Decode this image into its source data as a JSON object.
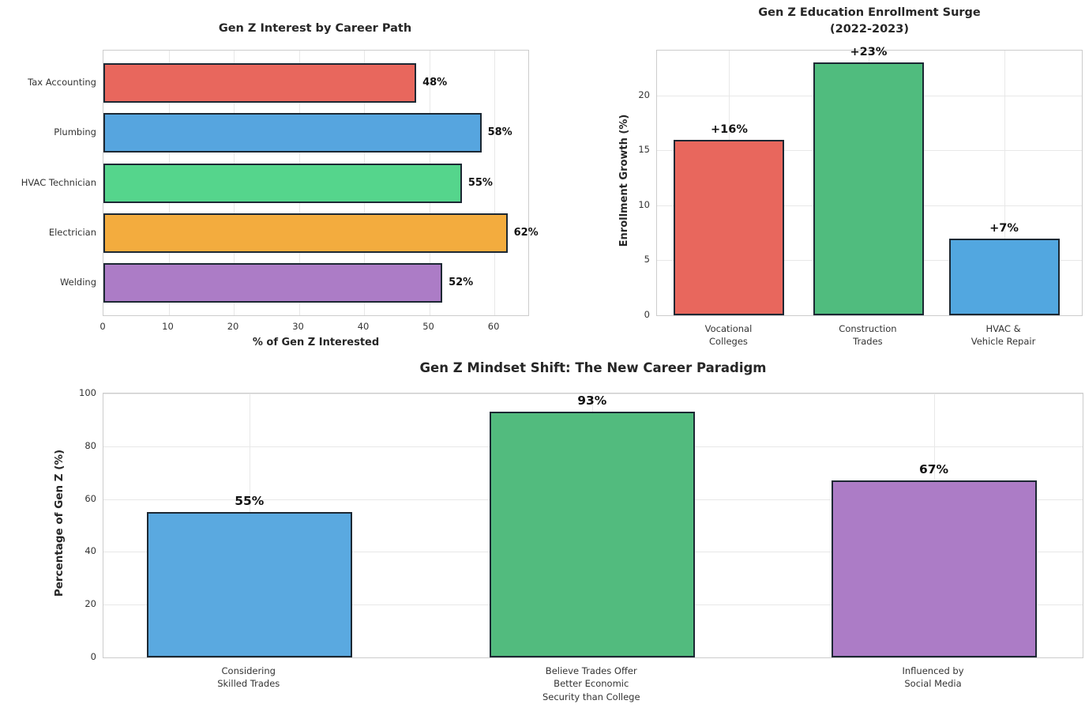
{
  "figure": {
    "background": "#ffffff",
    "bar_edge_color": "#1c2833"
  },
  "chart_data": [
    {
      "id": "career-interest",
      "type": "bar",
      "orientation": "horizontal",
      "title": "Gen Z Interest by Career Path",
      "xlabel": "% of Gen Z Interested",
      "categories": [
        "Tax Accounting",
        "Plumbing",
        "HVAC Technician",
        "Electrician",
        "Welding"
      ],
      "values": [
        48,
        58,
        55,
        62,
        52
      ],
      "value_labels": [
        "48%",
        "58%",
        "55%",
        "62%",
        "52%"
      ],
      "bar_colors": [
        "#E8675D",
        "#56A5DF",
        "#55D58C",
        "#F3AC3E",
        "#AC7CC6"
      ],
      "xlim": [
        0,
        65.2
      ],
      "xticks": [
        0,
        10,
        20,
        30,
        40,
        50,
        60
      ],
      "grid": true,
      "legend": "none"
    },
    {
      "id": "enrollment-surge",
      "type": "bar",
      "orientation": "vertical",
      "title": "Gen Z Education Enrollment Surge\n(2022-2023)",
      "ylabel": "Enrollment Growth (%)",
      "categories": [
        "Vocational\nColleges",
        "Construction\nTrades",
        "HVAC &\nVehicle Repair"
      ],
      "values": [
        16,
        23,
        7
      ],
      "value_labels": [
        "+16%",
        "+23%",
        "+7%"
      ],
      "bar_colors": [
        "#E8675D",
        "#50BC7E",
        "#52A7E0"
      ],
      "ylim": [
        0,
        24.1
      ],
      "yticks": [
        0,
        5,
        10,
        15,
        20
      ],
      "grid": true,
      "legend": "none"
    },
    {
      "id": "mindset-shift",
      "type": "bar",
      "orientation": "vertical",
      "title": "Gen Z Mindset Shift: The New Career Paradigm",
      "ylabel": "Percentage of Gen Z (%)",
      "categories": [
        "Considering\nSkilled Trades",
        "Believe Trades Offer\nBetter Economic\nSecurity than College",
        "Influenced by\nSocial Media"
      ],
      "values": [
        55,
        93,
        67
      ],
      "value_labels": [
        "55%",
        "93%",
        "67%"
      ],
      "bar_colors": [
        "#5AA9E0",
        "#52BB7E",
        "#AC7CC6"
      ],
      "ylim": [
        0,
        100
      ],
      "yticks": [
        0,
        20,
        40,
        60,
        80,
        100
      ],
      "grid": true,
      "legend": "none"
    }
  ]
}
